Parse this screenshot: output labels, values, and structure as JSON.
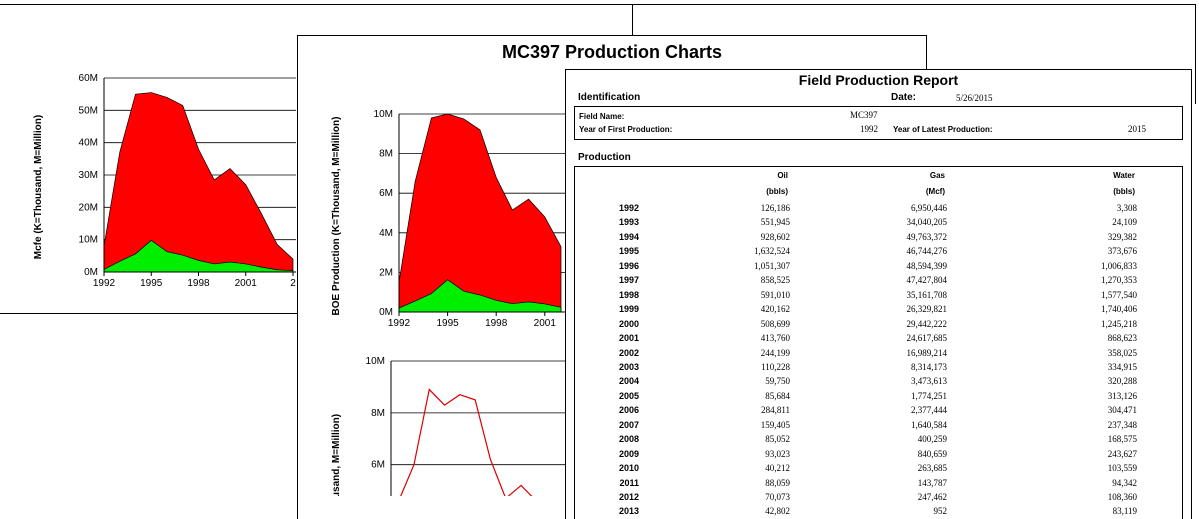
{
  "colors": {
    "gas": "#ff0000",
    "oil": "#00ee00",
    "line": "#dd0000"
  },
  "main_title": "MC397 Production Charts",
  "chart_data": [
    {
      "type": "area",
      "ylabel": "Mcfe (K=Thousand, M=Million)",
      "x_tick_labels": [
        "1992",
        "1995",
        "1998",
        "2001",
        "2"
      ],
      "y_tick_labels": [
        "0M",
        "10M",
        "20M",
        "30M",
        "40M",
        "50M",
        "60M"
      ],
      "ylim": [
        0,
        60
      ],
      "grid": true,
      "series": [
        {
          "values": [
            {
              "x": 1992,
              "y": 8
            },
            {
              "x": 1993,
              "y": 37
            },
            {
              "x": 1994,
              "y": 55
            },
            {
              "x": 1995,
              "y": 55.5
            },
            {
              "x": 1996,
              "y": 54
            },
            {
              "x": 1997,
              "y": 51.5
            },
            {
              "x": 1998,
              "y": 38
            },
            {
              "x": 1999,
              "y": 28.5
            },
            {
              "x": 2000,
              "y": 32
            },
            {
              "x": 2001,
              "y": 27
            },
            {
              "x": 2002,
              "y": 18
            },
            {
              "x": 2003,
              "y": 8.5
            },
            {
              "x": 2004,
              "y": 4
            }
          ]
        },
        {
          "values": [
            {
              "x": 1992,
              "y": 0.8
            },
            {
              "x": 1993,
              "y": 3.3
            },
            {
              "x": 1994,
              "y": 5.6
            },
            {
              "x": 1995,
              "y": 9.8
            },
            {
              "x": 1996,
              "y": 6.3
            },
            {
              "x": 1997,
              "y": 5.2
            },
            {
              "x": 1998,
              "y": 3.6
            },
            {
              "x": 1999,
              "y": 2.5
            },
            {
              "x": 2000,
              "y": 3.1
            },
            {
              "x": 2001,
              "y": 2.5
            },
            {
              "x": 2002,
              "y": 1.5
            },
            {
              "x": 2003,
              "y": 0.7
            },
            {
              "x": 2004,
              "y": 0.4
            }
          ]
        }
      ]
    },
    {
      "type": "area",
      "ylabel": "BOE Production (K=Thousand, M=Million)",
      "x_tick_labels": [
        "1992",
        "1995",
        "1998",
        "2001"
      ],
      "y_tick_labels": [
        "0M",
        "2M",
        "4M",
        "6M",
        "8M",
        "10M"
      ],
      "ylim": [
        0,
        10
      ],
      "grid": true,
      "series": [
        {
          "values": [
            {
              "x": 1992,
              "y": 1.5
            },
            {
              "x": 1993,
              "y": 6.6
            },
            {
              "x": 1994,
              "y": 9.8
            },
            {
              "x": 1995,
              "y": 10
            },
            {
              "x": 1996,
              "y": 9.75
            },
            {
              "x": 1997,
              "y": 9.2
            },
            {
              "x": 1998,
              "y": 6.8
            },
            {
              "x": 1999,
              "y": 5.15
            },
            {
              "x": 2000,
              "y": 5.7
            },
            {
              "x": 2001,
              "y": 4.8
            },
            {
              "x": 2002,
              "y": 3.3
            }
          ]
        },
        {
          "values": [
            {
              "x": 1992,
              "y": 0.2
            },
            {
              "x": 1993,
              "y": 0.55
            },
            {
              "x": 1994,
              "y": 0.93
            },
            {
              "x": 1995,
              "y": 1.63
            },
            {
              "x": 1996,
              "y": 1.05
            },
            {
              "x": 1997,
              "y": 0.86
            },
            {
              "x": 1998,
              "y": 0.59
            },
            {
              "x": 1999,
              "y": 0.42
            },
            {
              "x": 2000,
              "y": 0.51
            },
            {
              "x": 2001,
              "y": 0.41
            },
            {
              "x": 2002,
              "y": 0.24
            }
          ]
        }
      ]
    },
    {
      "type": "line",
      "ylabel": "usand, M=Million)",
      "y_tick_labels": [
        "6M",
        "8M",
        "10M"
      ],
      "ylim": [
        4.6,
        10
      ],
      "grid": true,
      "series": [
        {
          "values": [
            {
              "x": 1992,
              "y": 4.4
            },
            {
              "x": 1993,
              "y": 6
            },
            {
              "x": 1994,
              "y": 8.9
            },
            {
              "x": 1995,
              "y": 8.3
            },
            {
              "x": 1996,
              "y": 8.7
            },
            {
              "x": 1997,
              "y": 8.5
            },
            {
              "x": 1998,
              "y": 6.2
            },
            {
              "x": 1999,
              "y": 4.7
            },
            {
              "x": 2000,
              "y": 5.2
            },
            {
              "x": 2001,
              "y": 4.4
            }
          ]
        }
      ]
    }
  ],
  "report": {
    "title": "Field Production Report",
    "identification_label": "Identification",
    "date_label": "Date:",
    "date_value": "5/26/2015",
    "field_name_label": "Field Name:",
    "field_name_value": "MC397",
    "first_prod_label": "Year of First Production:",
    "first_prod_value": "1992",
    "latest_prod_label": "Year of Latest Production:",
    "latest_prod_value": "2015",
    "production_label": "Production",
    "columns": [
      {
        "name": "Oil",
        "unit": "(bbls)"
      },
      {
        "name": "Gas",
        "unit": "(Mcf)"
      },
      {
        "name": "Water",
        "unit": "(bbls)"
      }
    ],
    "rows": [
      {
        "year": "1992",
        "oil": "126,186",
        "gas": "6,950,446",
        "water": "3,308"
      },
      {
        "year": "1993",
        "oil": "551,945",
        "gas": "34,040,205",
        "water": "24,109"
      },
      {
        "year": "1994",
        "oil": "928,602",
        "gas": "49,763,372",
        "water": "329,382"
      },
      {
        "year": "1995",
        "oil": "1,632,524",
        "gas": "46,744,276",
        "water": "373,676"
      },
      {
        "year": "1996",
        "oil": "1,051,307",
        "gas": "48,594,399",
        "water": "1,006,833"
      },
      {
        "year": "1997",
        "oil": "858,525",
        "gas": "47,427,804",
        "water": "1,270,353"
      },
      {
        "year": "1998",
        "oil": "591,010",
        "gas": "35,161,708",
        "water": "1,577,540"
      },
      {
        "year": "1999",
        "oil": "420,162",
        "gas": "26,329,821",
        "water": "1,740,406"
      },
      {
        "year": "2000",
        "oil": "508,699",
        "gas": "29,442,222",
        "water": "1,245,218"
      },
      {
        "year": "2001",
        "oil": "413,760",
        "gas": "24,617,685",
        "water": "868,623"
      },
      {
        "year": "2002",
        "oil": "244,199",
        "gas": "16,989,214",
        "water": "358,025"
      },
      {
        "year": "2003",
        "oil": "110,228",
        "gas": "8,314,173",
        "water": "334,915"
      },
      {
        "year": "2004",
        "oil": "59,750",
        "gas": "3,473,613",
        "water": "320,288"
      },
      {
        "year": "2005",
        "oil": "85,684",
        "gas": "1,774,251",
        "water": "313,126"
      },
      {
        "year": "2006",
        "oil": "284,811",
        "gas": "2,377,444",
        "water": "304,471"
      },
      {
        "year": "2007",
        "oil": "159,405",
        "gas": "1,640,584",
        "water": "237,348"
      },
      {
        "year": "2008",
        "oil": "85,052",
        "gas": "400,259",
        "water": "168,575"
      },
      {
        "year": "2009",
        "oil": "93,023",
        "gas": "840,659",
        "water": "243,627"
      },
      {
        "year": "2010",
        "oil": "40,212",
        "gas": "263,685",
        "water": "103,559"
      },
      {
        "year": "2011",
        "oil": "88,059",
        "gas": "143,787",
        "water": "94,342"
      },
      {
        "year": "2012",
        "oil": "70,073",
        "gas": "247,462",
        "water": "108,360"
      },
      {
        "year": "2013",
        "oil": "42,802",
        "gas": "952",
        "water": "83,119"
      }
    ]
  }
}
